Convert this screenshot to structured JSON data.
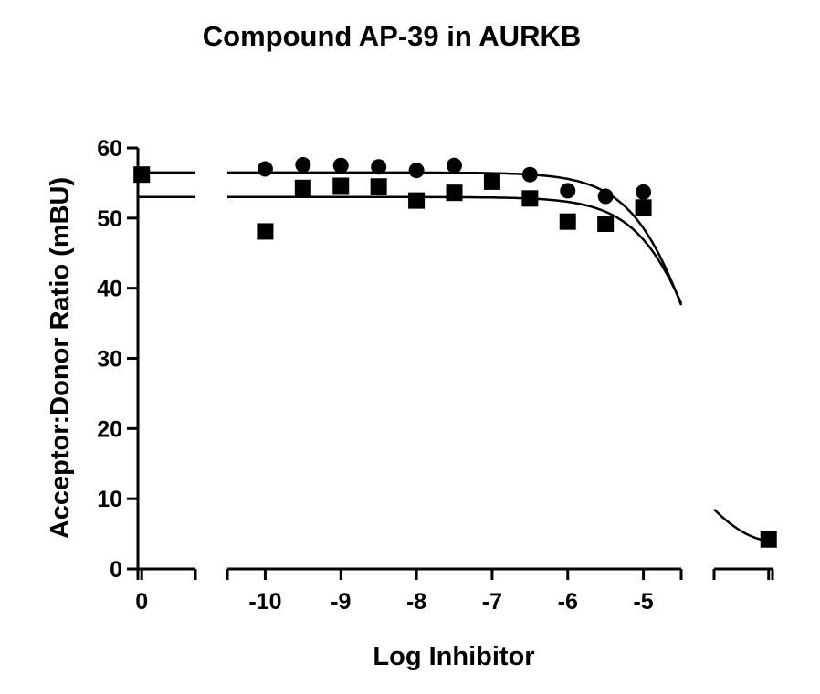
{
  "chart_data": {
    "type": "scatter",
    "title": "Compound AP-39 in AURKB",
    "xlabel": "Log Inhibitor",
    "ylabel": "Acceptor:Donor Ratio (mBU)",
    "ylim": [
      0,
      60
    ],
    "y_ticks": [
      "0",
      "10",
      "20",
      "30",
      "40",
      "50",
      "60"
    ],
    "x_segments": [
      {
        "ticks": [
          "0"
        ],
        "tick_values": [
          0
        ],
        "range": [
          -0.05,
          0.7
        ]
      },
      {
        "ticks": [
          "-10",
          "-9",
          "-8",
          "-7",
          "-6",
          "-5"
        ],
        "tick_values": [
          -10,
          -9,
          -8,
          -7,
          -6,
          -5
        ],
        "range": [
          -10.5,
          -4.5
        ]
      },
      {
        "ticks": [],
        "tick_values": [
          0
        ],
        "range": [
          -0.7,
          0.05
        ]
      }
    ],
    "grid": false,
    "series": [
      {
        "marker": "circle",
        "points": [
          {
            "x": -10,
            "y": 57.0
          },
          {
            "x": -9.5,
            "y": 57.6
          },
          {
            "x": -9,
            "y": 57.5
          },
          {
            "x": -8.5,
            "y": 57.3
          },
          {
            "x": -8,
            "y": 56.8
          },
          {
            "x": -7.5,
            "y": 57.5
          },
          {
            "x": -6.5,
            "y": 56.2
          },
          {
            "x": -6,
            "y": 53.9
          },
          {
            "x": -5.5,
            "y": 53.1
          },
          {
            "x": -5,
            "y": 53.7
          }
        ],
        "fit": {
          "top": 56.5,
          "bottom": 4,
          "log_ic50": -4.25,
          "hill": 1.0,
          "left_line_y": 56.5
        }
      },
      {
        "marker": "square",
        "points": [
          {
            "x": 0,
            "y": 56.2
          },
          {
            "x": -10,
            "y": 48.1
          },
          {
            "x": -9.5,
            "y": 54.3
          },
          {
            "x": -9,
            "y": 54.6
          },
          {
            "x": -8.5,
            "y": 54.5
          },
          {
            "x": -8,
            "y": 52.5
          },
          {
            "x": -7.5,
            "y": 53.6
          },
          {
            "x": -7,
            "y": 55.2
          },
          {
            "x": -6.5,
            "y": 52.8
          },
          {
            "x": -6,
            "y": 49.5
          },
          {
            "x": -5.5,
            "y": 49.2
          },
          {
            "x": -5,
            "y": 51.5
          },
          {
            "x": 0,
            "y": 4.2,
            "segment": 2
          }
        ],
        "fit": {
          "top": 53.0,
          "bottom": 4,
          "log_ic50": -4.15,
          "hill": 1.0,
          "left_line_y": 53.0
        }
      }
    ]
  }
}
